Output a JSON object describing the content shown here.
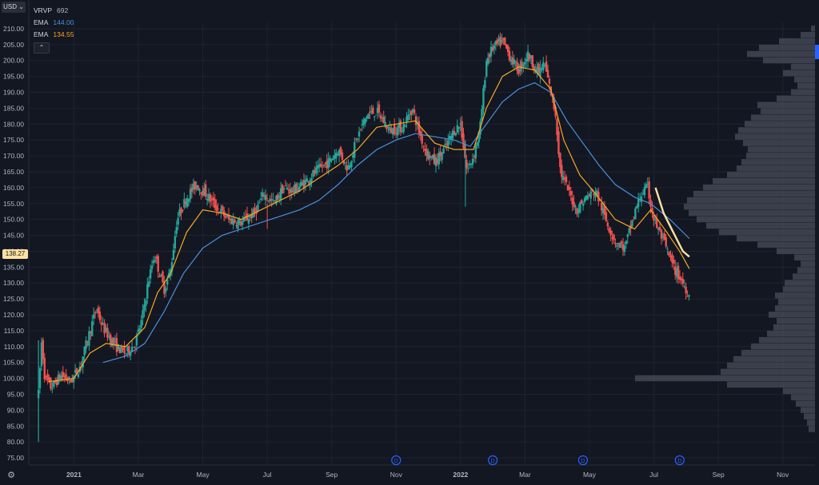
{
  "toolbar": {
    "currency_label": "USD",
    "currency_icon": "chevron-down-icon",
    "settings_icon": "gear-icon",
    "collapse_icon": "chevron-up-icon"
  },
  "legend": {
    "vrvp_label": "VRVP",
    "vrvp_value": "692",
    "ema1_label": "EMA",
    "ema1_value": "144.00",
    "ema1_color": "#4a90d9",
    "ema2_label": "EMA",
    "ema2_value": "134.55",
    "ema2_color": "#f5a623"
  },
  "last_price_label": "138.27",
  "chart_data": {
    "type": "candlestick",
    "colors": {
      "up": "#26a69a",
      "down": "#ef5350",
      "background": "#131722",
      "grid": "#1f2330",
      "ema_fast": "#f5a623",
      "ema_slow": "#4a90d9",
      "highlight": "#fde1a1",
      "volume_profile": "#4a4e5a"
    },
    "y_ticks": [
      210,
      205,
      200,
      195,
      190,
      185,
      180,
      175,
      170,
      165,
      160,
      155,
      150,
      145,
      140,
      135,
      130,
      125,
      120,
      115,
      110,
      105,
      100,
      95,
      90,
      85,
      80,
      75
    ],
    "y_tick_labels": [
      "210.00",
      "205.00",
      "200.00",
      "195.00",
      "190.00",
      "185.00",
      "180.00",
      "175.00",
      "170.00",
      "165.00",
      "160.00",
      "155.00",
      "150.00",
      "145.00",
      "140.00",
      "135.00",
      "130.00",
      "125.00",
      "120.00",
      "115.00",
      "110.00",
      "105.00",
      "100.00",
      "95.00",
      "90.00",
      "85.00",
      "80.00",
      "75.00"
    ],
    "ylim": [
      73,
      212
    ],
    "x_ticks": [
      "2021",
      "Mar",
      "May",
      "Jul",
      "Sep",
      "Nov",
      "2022",
      "Mar",
      "May",
      "Jul",
      "Sep",
      "Nov"
    ],
    "x_tick_months": [
      12,
      14,
      16,
      18,
      20,
      22,
      24,
      26,
      28,
      30,
      32,
      34
    ],
    "x_start_month": 10.6,
    "x_end_month": 35.0,
    "dividend_markers": {
      "label": "D",
      "months": [
        22.0,
        25.0,
        27.8,
        30.8
      ]
    },
    "price_path": [
      [
        10.9,
        95
      ],
      [
        11.0,
        112
      ],
      [
        11.1,
        100
      ],
      [
        11.3,
        97
      ],
      [
        11.6,
        101
      ],
      [
        11.9,
        99
      ],
      [
        12.2,
        104
      ],
      [
        12.5,
        115
      ],
      [
        12.7,
        122
      ],
      [
        12.9,
        116
      ],
      [
        13.1,
        113
      ],
      [
        13.3,
        110
      ],
      [
        13.6,
        108
      ],
      [
        13.9,
        111
      ],
      [
        14.1,
        118
      ],
      [
        14.3,
        130
      ],
      [
        14.5,
        139
      ],
      [
        14.8,
        128
      ],
      [
        15.0,
        134
      ],
      [
        15.2,
        150
      ],
      [
        15.5,
        157
      ],
      [
        15.8,
        161
      ],
      [
        16.1,
        158
      ],
      [
        16.4,
        154
      ],
      [
        16.8,
        150
      ],
      [
        17.2,
        149
      ],
      [
        17.6,
        152
      ],
      [
        17.9,
        158
      ],
      [
        18.2,
        155
      ],
      [
        18.5,
        160
      ],
      [
        18.8,
        159
      ],
      [
        19.2,
        162
      ],
      [
        19.5,
        165
      ],
      [
        19.9,
        168
      ],
      [
        20.2,
        172
      ],
      [
        20.5,
        166
      ],
      [
        20.8,
        176
      ],
      [
        21.1,
        183
      ],
      [
        21.4,
        184
      ],
      [
        21.8,
        178
      ],
      [
        22.2,
        179
      ],
      [
        22.5,
        185
      ],
      [
        22.7,
        178
      ],
      [
        22.9,
        172
      ],
      [
        23.2,
        168
      ],
      [
        23.5,
        172
      ],
      [
        23.8,
        178
      ],
      [
        24.0,
        180
      ],
      [
        24.2,
        165
      ],
      [
        24.4,
        170
      ],
      [
        24.6,
        178
      ],
      [
        24.8,
        200
      ],
      [
        25.0,
        204
      ],
      [
        25.3,
        206
      ],
      [
        25.6,
        200
      ],
      [
        25.8,
        197
      ],
      [
        26.1,
        202
      ],
      [
        26.4,
        196
      ],
      [
        26.6,
        199
      ],
      [
        26.8,
        190
      ],
      [
        26.95,
        183
      ],
      [
        27.1,
        165
      ],
      [
        27.3,
        160
      ],
      [
        27.6,
        153
      ],
      [
        27.9,
        157
      ],
      [
        28.2,
        159
      ],
      [
        28.5,
        150
      ],
      [
        28.8,
        143
      ],
      [
        29.1,
        141
      ],
      [
        29.4,
        152
      ],
      [
        29.6,
        158
      ],
      [
        29.8,
        160
      ],
      [
        30.0,
        150
      ],
      [
        30.3,
        143
      ],
      [
        30.6,
        135
      ],
      [
        30.9,
        130
      ],
      [
        31.1,
        126
      ]
    ],
    "ema_fast_path": [
      [
        11.2,
        99
      ],
      [
        12.0,
        100
      ],
      [
        12.5,
        108
      ],
      [
        13.0,
        111
      ],
      [
        13.6,
        110
      ],
      [
        14.2,
        116
      ],
      [
        14.6,
        127
      ],
      [
        15.0,
        133
      ],
      [
        15.5,
        146
      ],
      [
        16.0,
        153
      ],
      [
        16.6,
        152
      ],
      [
        17.2,
        150
      ],
      [
        17.8,
        153
      ],
      [
        18.4,
        156
      ],
      [
        19.0,
        159
      ],
      [
        19.6,
        163
      ],
      [
        20.2,
        167
      ],
      [
        20.8,
        172
      ],
      [
        21.4,
        179
      ],
      [
        22.0,
        180
      ],
      [
        22.6,
        181
      ],
      [
        23.2,
        174
      ],
      [
        23.8,
        172
      ],
      [
        24.4,
        172
      ],
      [
        24.8,
        185
      ],
      [
        25.3,
        195
      ],
      [
        25.8,
        198
      ],
      [
        26.3,
        197
      ],
      [
        26.8,
        191
      ],
      [
        27.2,
        175
      ],
      [
        27.7,
        164
      ],
      [
        28.2,
        158
      ],
      [
        28.8,
        150
      ],
      [
        29.4,
        147
      ],
      [
        29.9,
        153
      ],
      [
        30.4,
        146
      ],
      [
        30.8,
        140
      ],
      [
        31.1,
        134.5
      ]
    ],
    "ema_slow_path": [
      [
        12.9,
        105
      ],
      [
        13.6,
        107
      ],
      [
        14.2,
        111
      ],
      [
        14.8,
        121
      ],
      [
        15.4,
        133
      ],
      [
        16.0,
        141
      ],
      [
        16.6,
        145
      ],
      [
        17.2,
        147
      ],
      [
        17.8,
        149
      ],
      [
        18.4,
        151
      ],
      [
        19.0,
        153
      ],
      [
        19.6,
        156
      ],
      [
        20.2,
        161
      ],
      [
        20.8,
        167
      ],
      [
        21.4,
        172
      ],
      [
        22.0,
        175
      ],
      [
        22.6,
        177
      ],
      [
        23.2,
        176
      ],
      [
        23.8,
        175
      ],
      [
        24.3,
        173
      ],
      [
        24.8,
        180
      ],
      [
        25.3,
        187
      ],
      [
        25.8,
        191
      ],
      [
        26.3,
        193
      ],
      [
        26.8,
        190
      ],
      [
        27.3,
        181
      ],
      [
        27.8,
        174
      ],
      [
        28.3,
        167
      ],
      [
        28.8,
        161
      ],
      [
        29.4,
        157
      ],
      [
        29.9,
        155
      ],
      [
        30.5,
        150
      ],
      [
        31.1,
        144
      ]
    ],
    "highlight_path": [
      [
        30.05,
        160
      ],
      [
        30.3,
        152
      ],
      [
        30.6,
        146
      ],
      [
        30.9,
        140
      ],
      [
        31.1,
        138.27
      ]
    ],
    "volume_profile": [
      [
        210,
        5
      ],
      [
        208,
        18
      ],
      [
        206,
        45
      ],
      [
        204,
        70
      ],
      [
        202,
        85
      ],
      [
        200,
        65
      ],
      [
        198,
        30
      ],
      [
        196,
        40
      ],
      [
        194,
        26
      ],
      [
        192,
        22
      ],
      [
        190,
        30
      ],
      [
        188,
        48
      ],
      [
        186,
        72
      ],
      [
        184,
        68
      ],
      [
        182,
        80
      ],
      [
        180,
        88
      ],
      [
        178,
        96
      ],
      [
        176,
        100
      ],
      [
        174,
        90
      ],
      [
        172,
        84
      ],
      [
        170,
        86
      ],
      [
        168,
        92
      ],
      [
        166,
        98
      ],
      [
        164,
        110
      ],
      [
        162,
        128
      ],
      [
        160,
        140
      ],
      [
        158,
        152
      ],
      [
        156,
        160
      ],
      [
        154,
        164
      ],
      [
        152,
        158
      ],
      [
        150,
        148
      ],
      [
        148,
        136
      ],
      [
        146,
        120
      ],
      [
        144,
        98
      ],
      [
        142,
        72
      ],
      [
        140,
        48
      ],
      [
        138,
        26
      ],
      [
        136,
        18
      ],
      [
        134,
        22
      ],
      [
        132,
        28
      ],
      [
        130,
        38
      ],
      [
        128,
        40
      ],
      [
        126,
        50
      ],
      [
        124,
        46
      ],
      [
        122,
        50
      ],
      [
        120,
        58
      ],
      [
        118,
        48
      ],
      [
        116,
        52
      ],
      [
        114,
        60
      ],
      [
        112,
        70
      ],
      [
        110,
        80
      ],
      [
        108,
        92
      ],
      [
        106,
        102
      ],
      [
        104,
        110
      ],
      [
        102,
        118
      ],
      [
        100,
        225
      ],
      [
        98,
        110
      ],
      [
        96,
        40
      ],
      [
        94,
        30
      ],
      [
        92,
        24
      ],
      [
        90,
        18
      ],
      [
        88,
        14
      ],
      [
        86,
        10
      ],
      [
        84,
        8
      ]
    ]
  }
}
